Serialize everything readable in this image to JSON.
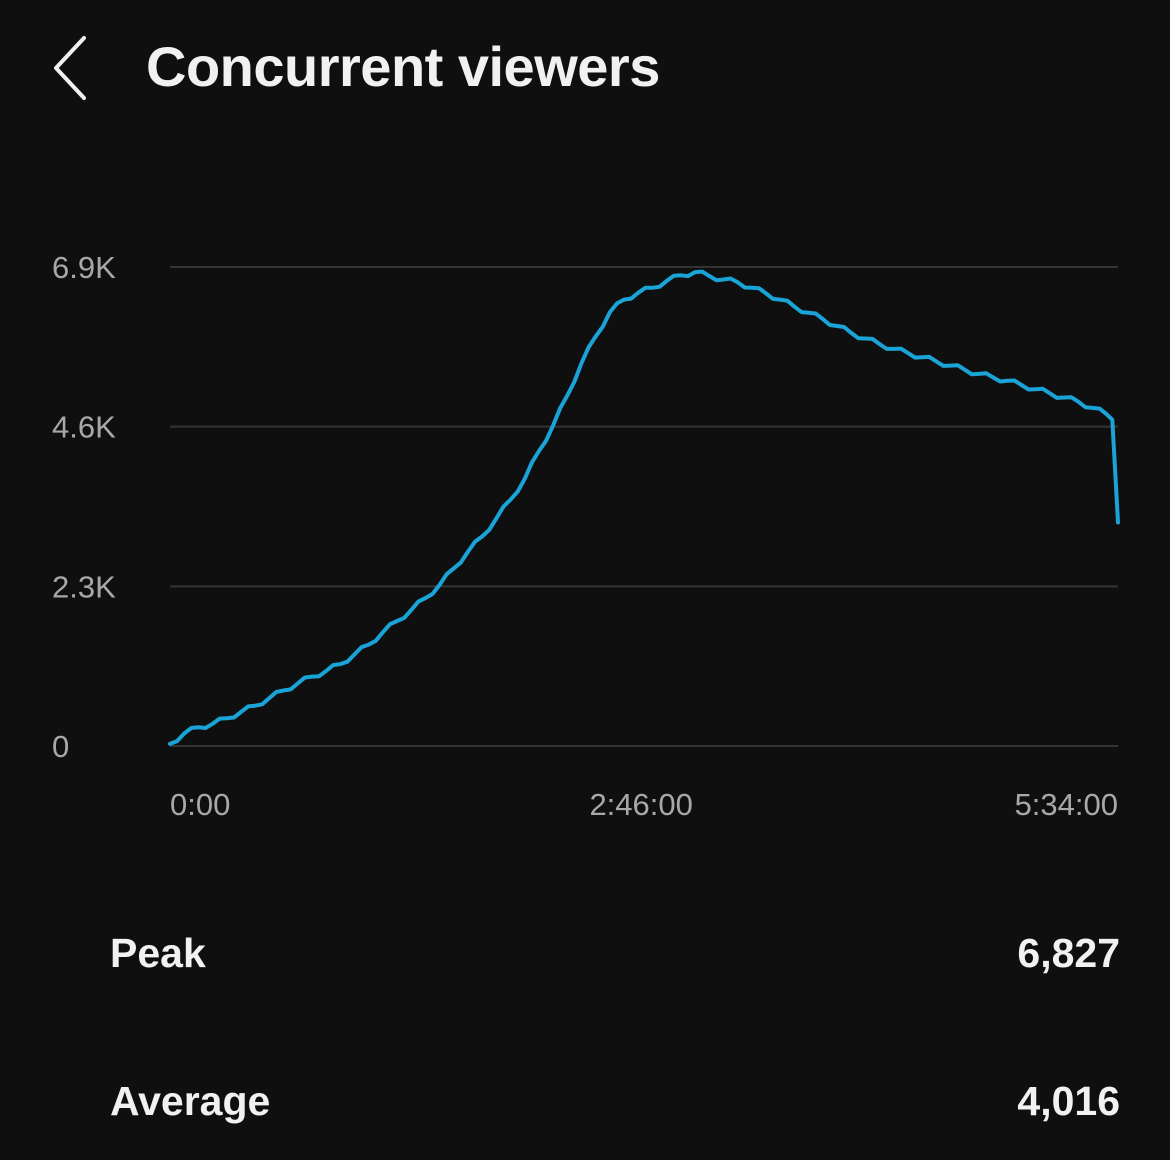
{
  "header": {
    "title": "Concurrent viewers",
    "back_icon": "chevron-left-icon"
  },
  "chart_data": {
    "type": "line",
    "x_unit": "elapsed time (h:mm:ss)",
    "x_tick_labels": [
      "0:00",
      "2:46:00",
      "5:34:00"
    ],
    "x_ticks_minutes": [
      0,
      166,
      334
    ],
    "y_tick_labels": [
      "0",
      "2.3K",
      "4.6K",
      "6.9K"
    ],
    "y_ticks": [
      0,
      2300,
      4600,
      6900
    ],
    "ylim": [
      0,
      6900
    ],
    "grid": "horizontal",
    "line_color": "#1aa3d6",
    "grid_color": "#333333",
    "axis_text_color": "#a8a8a8",
    "series": [
      {
        "x": [
          0,
          5,
          10,
          15,
          20,
          25,
          30,
          35,
          40,
          45,
          50,
          55,
          60,
          65,
          70,
          75,
          80,
          85,
          90,
          95,
          100,
          105,
          110,
          115,
          120,
          125,
          130,
          135,
          140,
          145,
          150,
          155,
          160,
          165,
          170,
          175,
          180,
          185,
          190,
          195,
          200,
          205,
          210,
          215,
          220,
          225,
          230,
          235,
          240,
          245,
          250,
          255,
          260,
          265,
          270,
          275,
          280,
          285,
          290,
          295,
          300,
          305,
          310,
          315,
          320,
          325,
          330,
          332,
          334
        ],
        "y": [
          30,
          180,
          270,
          320,
          400,
          490,
          580,
          690,
          800,
          900,
          1000,
          1080,
          1180,
          1320,
          1460,
          1640,
          1800,
          1960,
          2130,
          2320,
          2560,
          2800,
          3020,
          3280,
          3550,
          3850,
          4250,
          4620,
          5050,
          5520,
          5900,
          6250,
          6430,
          6530,
          6600,
          6700,
          6780,
          6827,
          6770,
          6720,
          6680,
          6600,
          6520,
          6430,
          6330,
          6240,
          6150,
          6050,
          5950,
          5870,
          5790,
          5720,
          5660,
          5600,
          5540,
          5480,
          5420,
          5360,
          5310,
          5260,
          5200,
          5140,
          5080,
          5020,
          4960,
          4870,
          4780,
          4700,
          3220
        ]
      }
    ]
  },
  "stats": {
    "peak_label": "Peak",
    "peak_value": "6,827",
    "average_label": "Average",
    "average_value": "4,016"
  }
}
